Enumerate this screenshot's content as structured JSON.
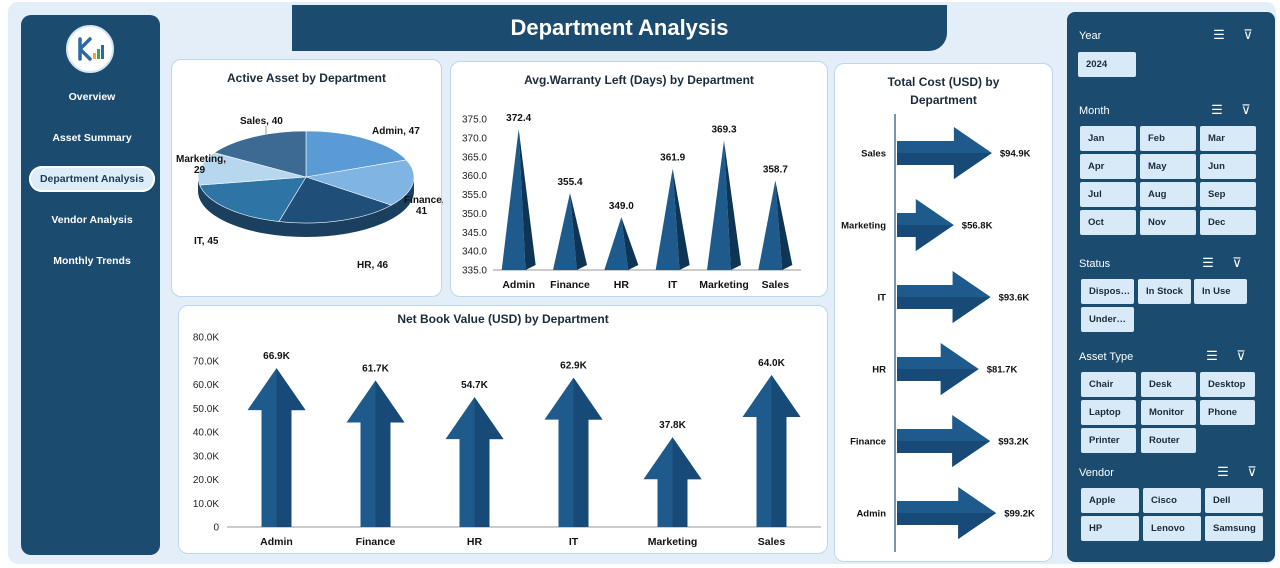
{
  "header": {
    "title": "Department Analysis"
  },
  "nav": {
    "items": [
      {
        "label": "Overview"
      },
      {
        "label": "Asset Summary"
      },
      {
        "label": "Department Analysis"
      },
      {
        "label": "Vendor Analysis"
      },
      {
        "label": "Monthly Trends"
      }
    ],
    "active": "Department Analysis"
  },
  "charts": {
    "active_asset": {
      "title": "Active Asset by Department",
      "labels": {
        "admin": "Admin, 47",
        "finance": "Finance,",
        "finance_val": "41",
        "hr": "HR, 46",
        "it": "IT, 45",
        "marketing": "Marketing,",
        "marketing_val": "29",
        "sales": "Sales, 40"
      }
    },
    "warranty": {
      "title": "Avg.Warranty Left (Days) by Department",
      "yticks": [
        "375.0",
        "370.0",
        "365.0",
        "360.0",
        "355.0",
        "350.0",
        "345.0",
        "340.0",
        "335.0"
      ]
    },
    "net_book": {
      "title": "Net Book Value (USD) by Department",
      "yticks": [
        "80.0K",
        "70.0K",
        "60.0K",
        "50.0K",
        "40.0K",
        "30.0K",
        "20.0K",
        "10.0K",
        "0"
      ]
    },
    "total_cost": {
      "title_line1": "Total Cost (USD) by",
      "title_line2": "Department"
    }
  },
  "chart_data": [
    {
      "type": "pie",
      "title": "Active Asset by Department",
      "categories": [
        "Admin",
        "Finance",
        "HR",
        "IT",
        "Marketing",
        "Sales"
      ],
      "values": [
        47,
        41,
        46,
        45,
        29,
        40
      ],
      "colors": [
        "#5b9bd5",
        "#7fb4e3",
        "#1f4e79",
        "#2e75a6",
        "#b7d7ef",
        "#3d6a92"
      ]
    },
    {
      "type": "bar",
      "title": "Avg.Warranty Left (Days) by Department",
      "categories": [
        "Admin",
        "Finance",
        "HR",
        "IT",
        "Marketing",
        "Sales"
      ],
      "values": [
        372.4,
        355.4,
        349.0,
        361.9,
        369.3,
        358.7
      ],
      "value_labels": [
        "372.4",
        "355.4",
        "349.0",
        "361.9",
        "369.3",
        "358.7"
      ],
      "ylim": [
        335,
        375
      ]
    },
    {
      "type": "bar",
      "title": "Net Book Value (USD) by Department",
      "categories": [
        "Admin",
        "Finance",
        "HR",
        "IT",
        "Marketing",
        "Sales"
      ],
      "values": [
        66.9,
        61.7,
        54.7,
        62.9,
        37.8,
        64.0
      ],
      "value_labels": [
        "66.9K",
        "61.7K",
        "54.7K",
        "62.9K",
        "37.8K",
        "64.0K"
      ],
      "ylim": [
        0,
        80
      ]
    },
    {
      "type": "bar",
      "title": "Total Cost (USD) by Department",
      "categories": [
        "Sales",
        "Marketing",
        "IT",
        "HR",
        "Finance",
        "Admin"
      ],
      "values": [
        94.9,
        56.8,
        93.6,
        81.7,
        93.2,
        99.2
      ],
      "value_labels": [
        "$94.9K",
        "$56.8K",
        "$93.6K",
        "$81.7K",
        "$93.2K",
        "$99.2K"
      ],
      "xlim": [
        0,
        100
      ]
    }
  ],
  "filters": {
    "year": {
      "label": "Year",
      "options": [
        "2024"
      ]
    },
    "month": {
      "label": "Month",
      "options": [
        "Jan",
        "Feb",
        "Mar",
        "Apr",
        "May",
        "Jun",
        "Jul",
        "Aug",
        "Sep",
        "Oct",
        "Nov",
        "Dec"
      ]
    },
    "status": {
      "label": "Status",
      "options": [
        "Dispos…",
        "In Stock",
        "In Use",
        "Under…"
      ]
    },
    "asset_type": {
      "label": "Asset Type",
      "options": [
        "Chair",
        "Desk",
        "Desktop",
        "Laptop",
        "Monitor",
        "Phone",
        "Printer",
        "Router"
      ]
    },
    "vendor": {
      "label": "Vendor",
      "options": [
        "Apple",
        "Cisco",
        "Dell",
        "HP",
        "Lenovo",
        "Samsung"
      ]
    },
    "icons": {
      "multi_select": "multi-select-icon",
      "clear_filter": "clear-filter-icon"
    }
  },
  "colors": {
    "navy": "#1b4b6e",
    "chip": "#d8e9f7",
    "accent": "#1f5a8c"
  }
}
